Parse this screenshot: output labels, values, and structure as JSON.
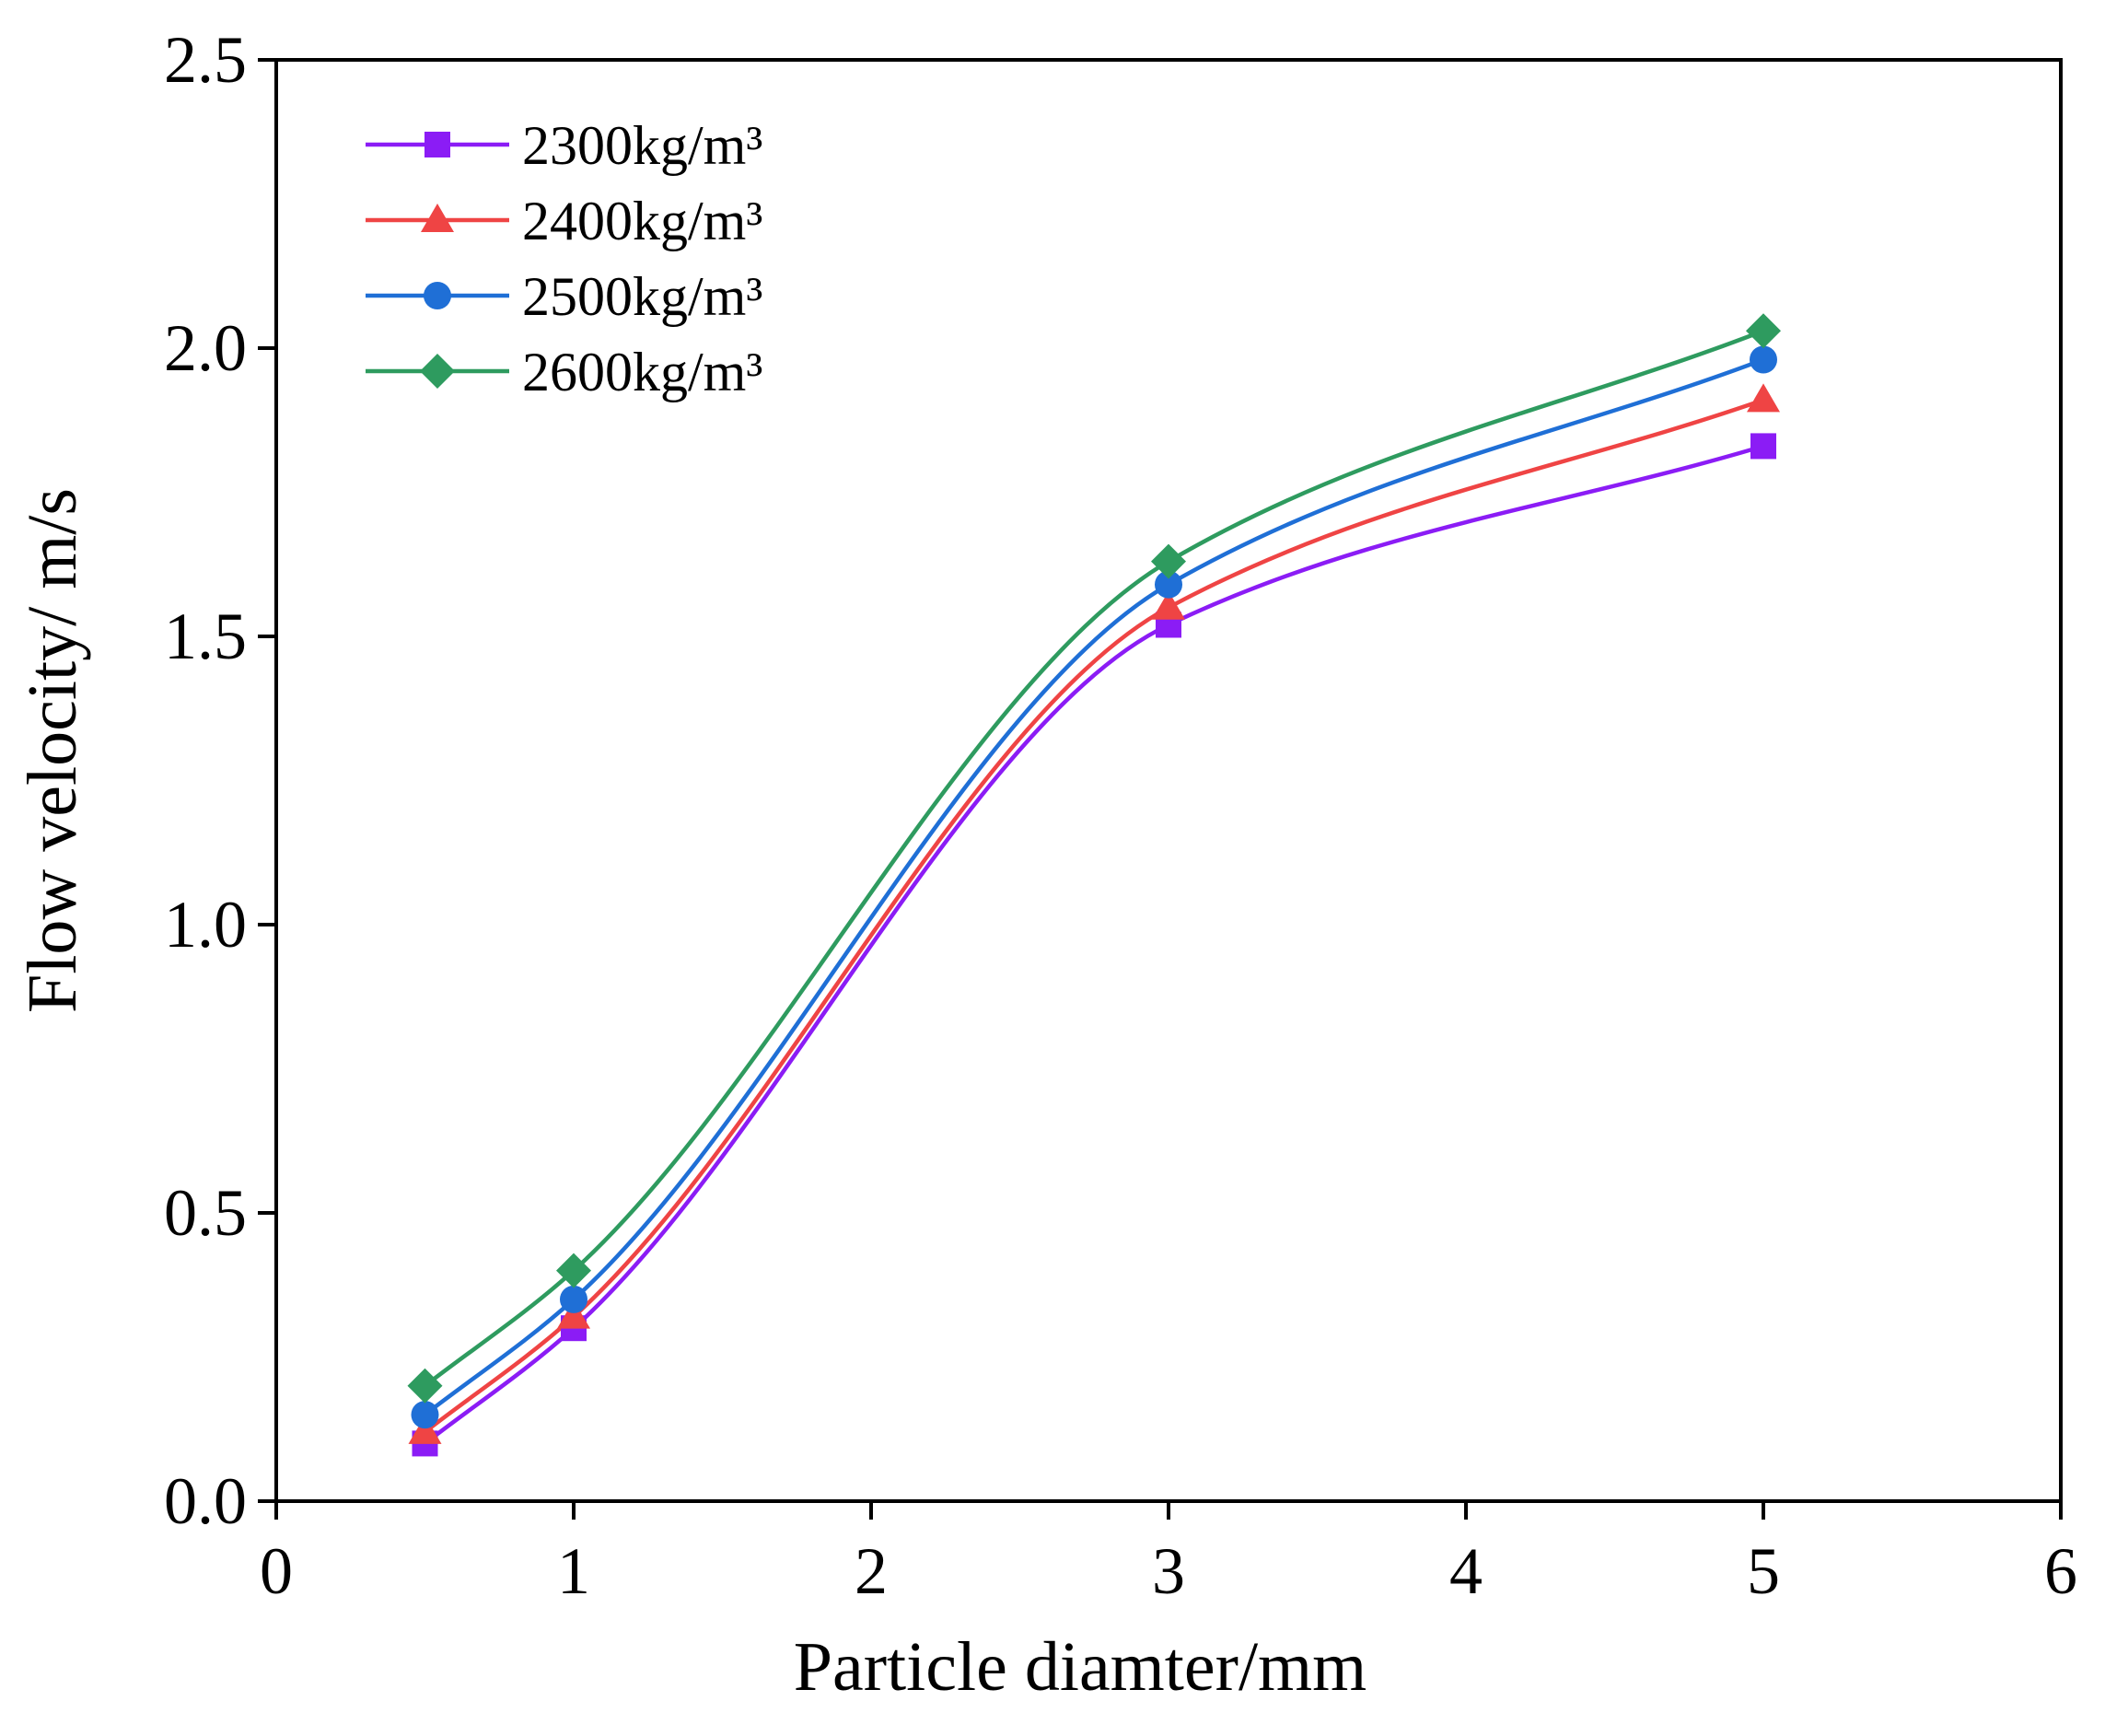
{
  "chart_data": {
    "type": "line",
    "title": "",
    "xlabel": "Particle diamter/mm",
    "ylabel": "Flow velocity/ m/s",
    "xlim": [
      0,
      6
    ],
    "ylim": [
      0,
      2.5
    ],
    "xticks": [
      0,
      1,
      2,
      3,
      4,
      5,
      6
    ],
    "yticks": [
      0.0,
      0.5,
      1.0,
      1.5,
      2.0,
      2.5
    ],
    "xtick_labels": [
      "0",
      "1",
      "2",
      "3",
      "4",
      "5",
      "6"
    ],
    "ytick_labels": [
      "0.0",
      "0.5",
      "1.0",
      "1.5",
      "2.0",
      "2.5"
    ],
    "grid": false,
    "legend_position": "top-left",
    "x": [
      0.5,
      1,
      3,
      5
    ],
    "series": [
      {
        "name": "2300kg/m³",
        "color": "#8b1cf5",
        "marker": "square",
        "values": [
          0.1,
          0.3,
          1.52,
          1.83
        ]
      },
      {
        "name": "2400kg/m³",
        "color": "#ef4444",
        "marker": "triangle",
        "values": [
          0.12,
          0.32,
          1.55,
          1.91
        ]
      },
      {
        "name": "2500kg/m³",
        "color": "#1f6fd6",
        "marker": "circle",
        "values": [
          0.15,
          0.35,
          1.59,
          1.98
        ]
      },
      {
        "name": "2600kg/m³",
        "color": "#2e9b5f",
        "marker": "diamond",
        "values": [
          0.2,
          0.4,
          1.63,
          2.03
        ]
      }
    ]
  }
}
